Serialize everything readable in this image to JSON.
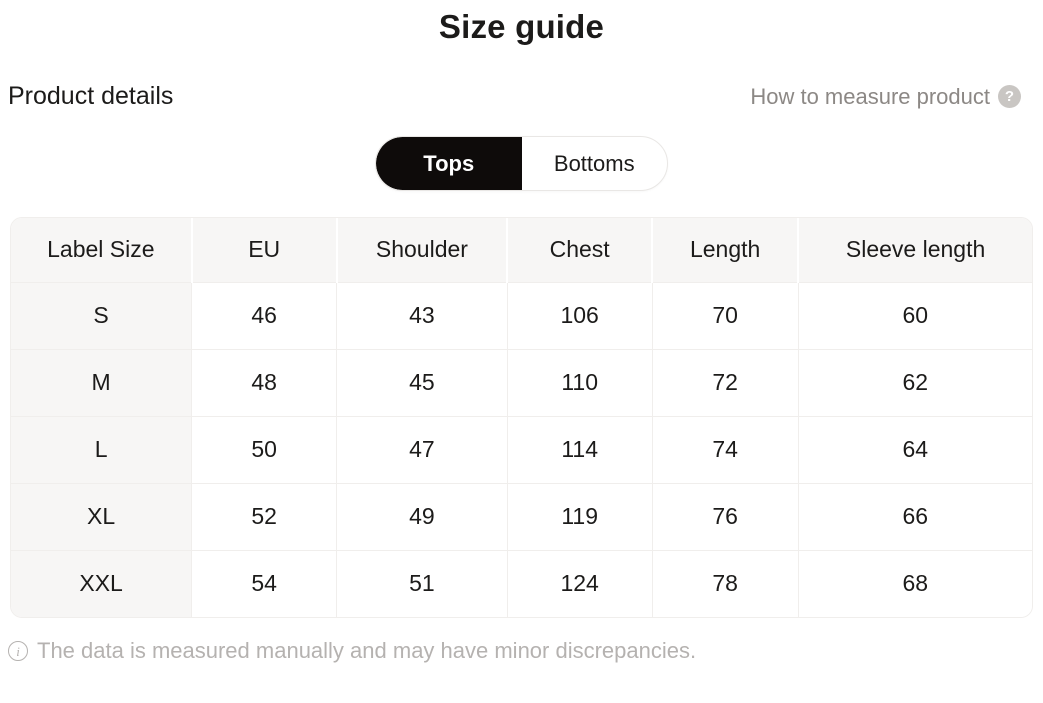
{
  "page": {
    "title": "Size guide",
    "section_title": "Product details",
    "measure_link": "How to measure product",
    "help_icon_glyph": "?",
    "info_icon_glyph": "i",
    "footer_note": "The data is measured manually and may have minor discrepancies."
  },
  "tabs": [
    {
      "label": "Tops",
      "active": true
    },
    {
      "label": "Bottoms",
      "active": false
    }
  ],
  "table": {
    "columns": [
      "Label Size",
      "EU",
      "Shoulder",
      "Chest",
      "Length",
      "Sleeve length"
    ],
    "rows": [
      [
        "S",
        "46",
        "43",
        "106",
        "70",
        "60"
      ],
      [
        "M",
        "48",
        "45",
        "110",
        "72",
        "62"
      ],
      [
        "L",
        "50",
        "47",
        "114",
        "74",
        "64"
      ],
      [
        "XL",
        "52",
        "49",
        "119",
        "76",
        "66"
      ],
      [
        "XXL",
        "54",
        "51",
        "124",
        "78",
        "68"
      ]
    ]
  },
  "colors": {
    "tab_active_bg": "#0e0b0a",
    "header_bg": "#f7f6f5",
    "grid_line": "#f0eeec",
    "muted_text": "#8c8885",
    "footer_text": "#b5b2b0",
    "help_icon_bg": "#c9c6c3"
  }
}
